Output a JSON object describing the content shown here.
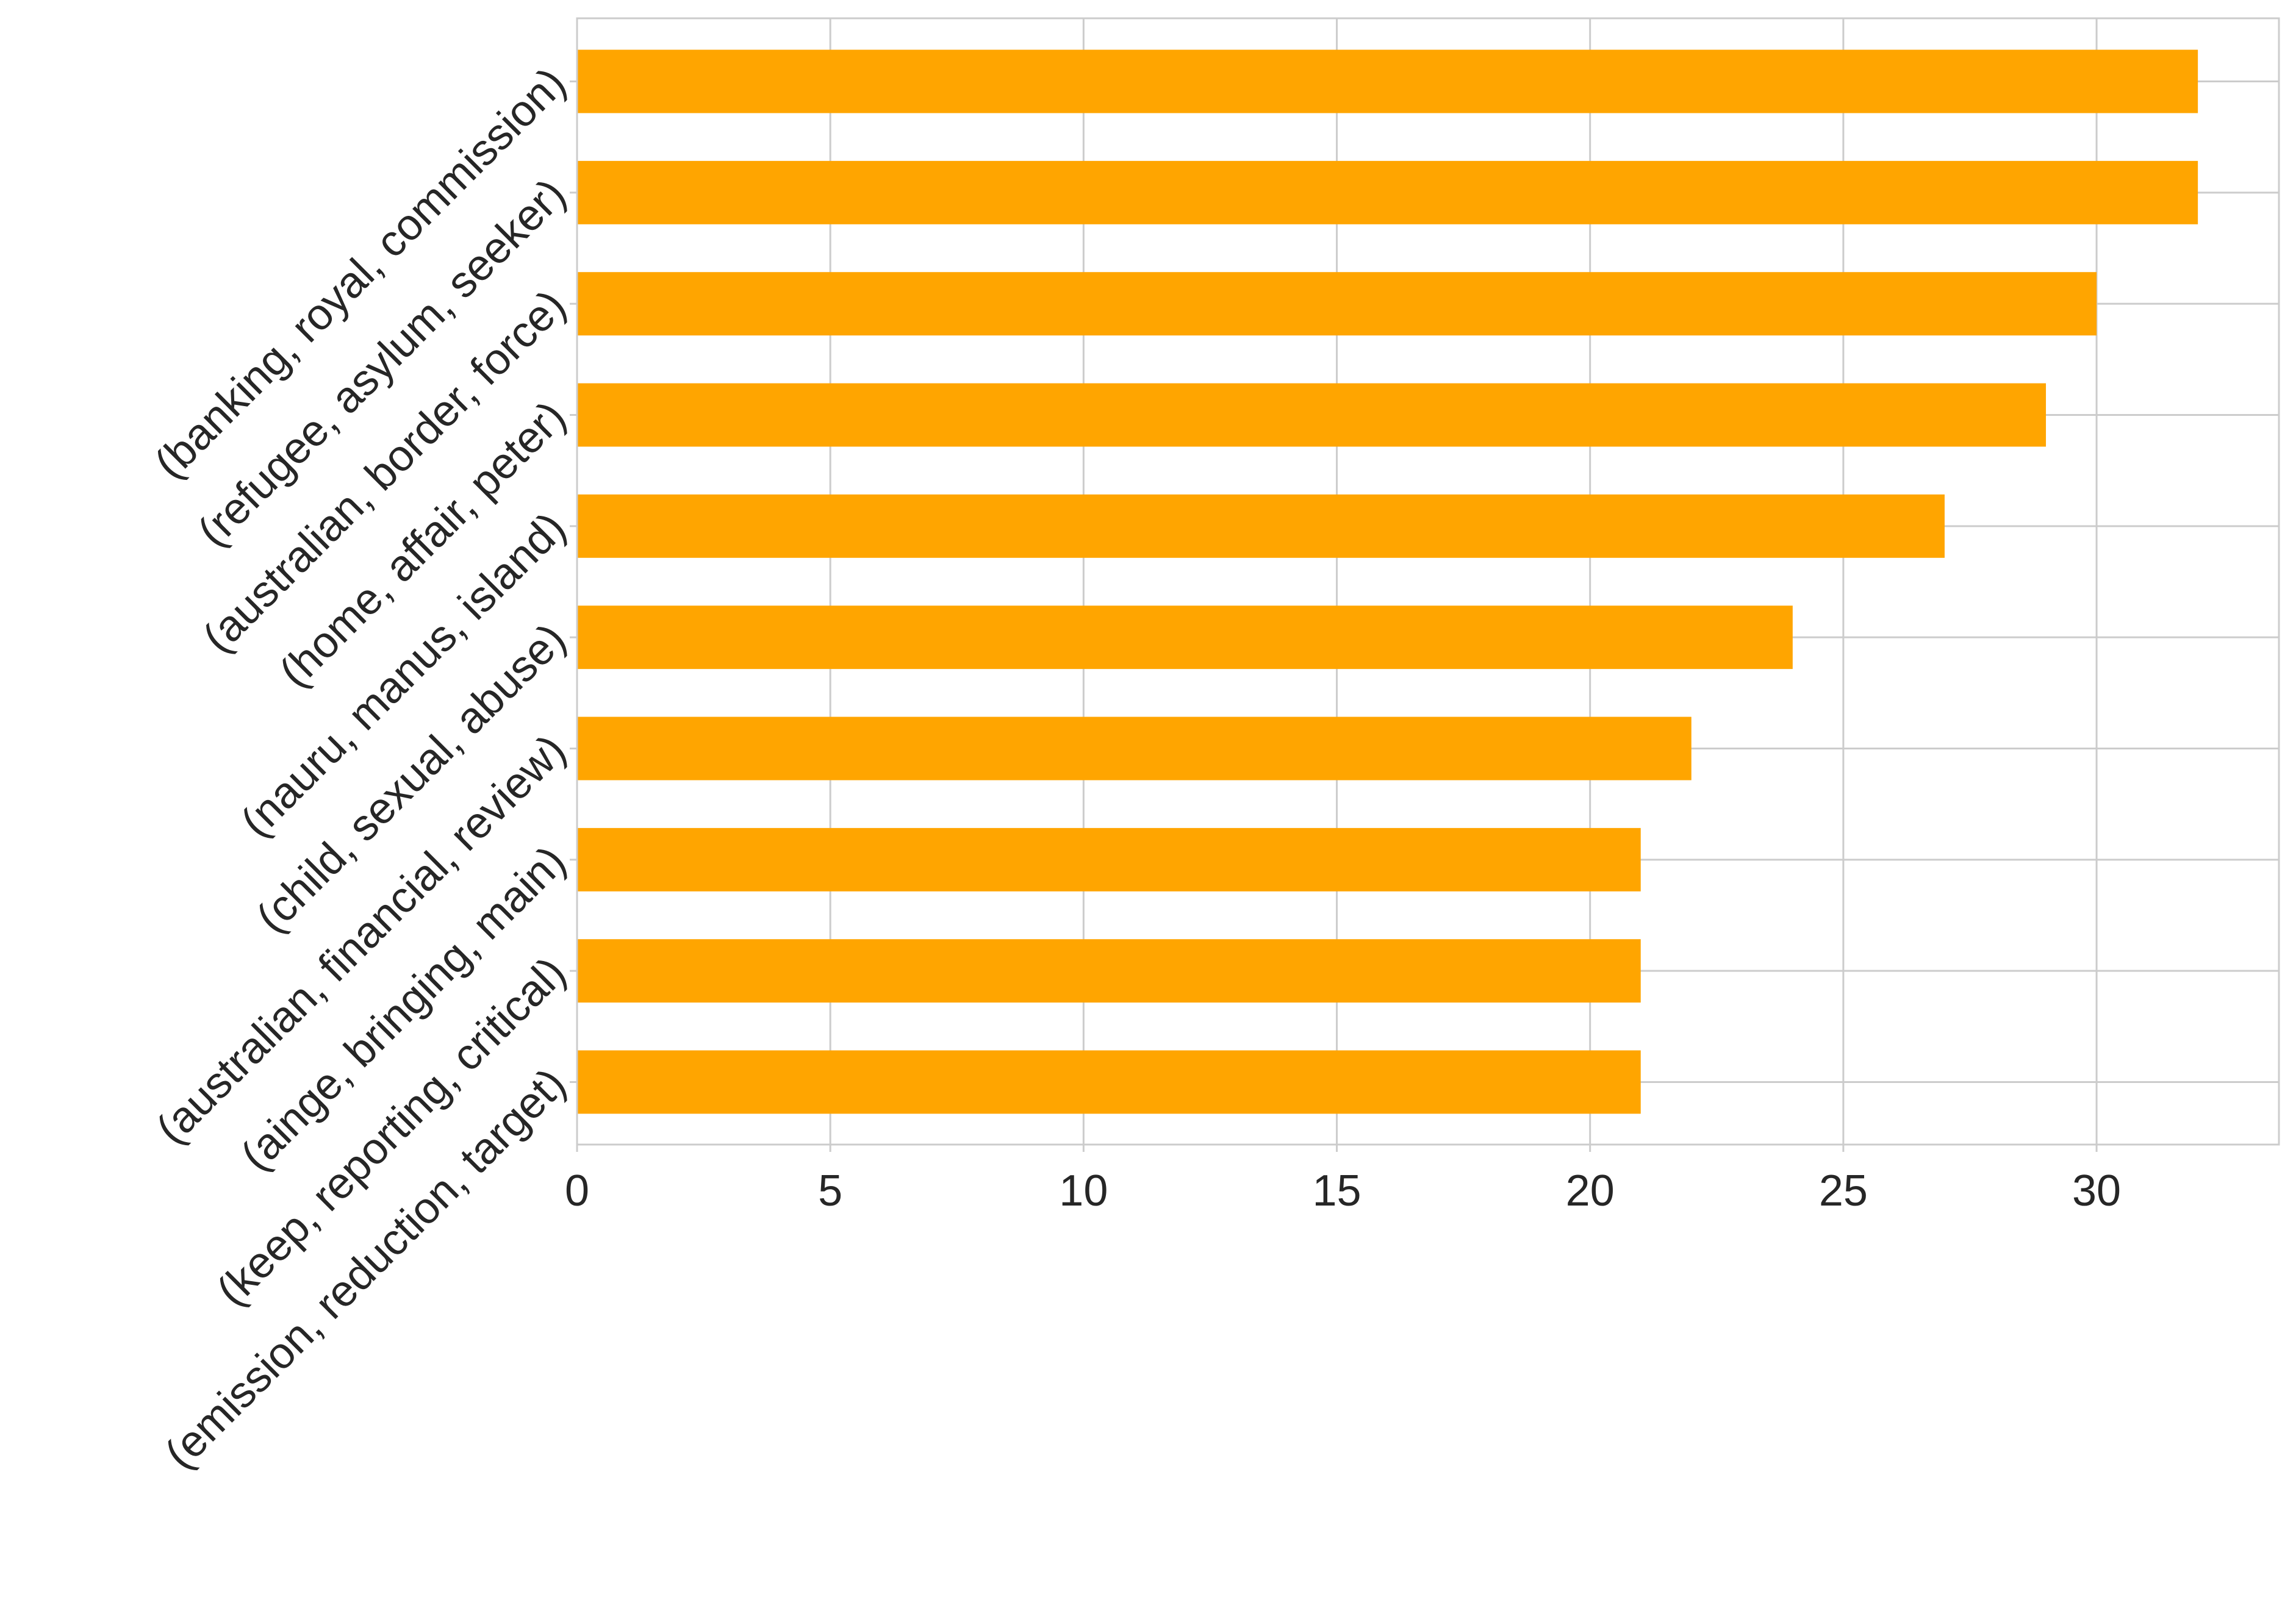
{
  "chart_data": {
    "type": "bar",
    "orientation": "horizontal",
    "title": "",
    "xlabel": "",
    "ylabel": "",
    "categories": [
      "(banking, royal, commission)",
      "(refugee, asylum, seeker)",
      "(australian, border, force)",
      "(home, affair, peter)",
      "(nauru, manus, island)",
      "(child, sexual, abuse)",
      "(australian, financial, review)",
      "(ainge, bringing, main)",
      "(keep, reporting, critical)",
      "(emission, reduction, target)"
    ],
    "values": [
      32,
      32,
      30,
      29,
      27,
      24,
      22,
      21,
      21,
      21
    ],
    "xlim": [
      0,
      33.6
    ],
    "xticks": [
      0,
      5,
      10,
      15,
      20,
      25,
      30
    ],
    "grid": true,
    "colors": {
      "bar": "#FFA500",
      "grid": "#cccccc",
      "text": "#262626",
      "background": "#ffffff"
    }
  }
}
